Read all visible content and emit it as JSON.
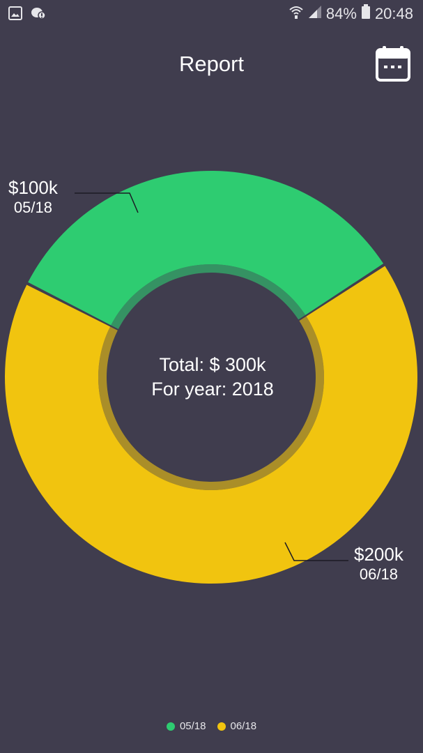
{
  "status_bar": {
    "battery": "84%",
    "time": "20:48",
    "icons": [
      "gallery-icon",
      "chat-bubble-icon",
      "wifi-icon",
      "signal-icon",
      "battery-icon"
    ]
  },
  "header": {
    "title": "Report",
    "calendar_icon": "calendar-icon"
  },
  "center": {
    "total_line": "Total:  $ 300k",
    "year_line": "For year: 2018"
  },
  "colors": {
    "background": "#403d4e",
    "green": "#2ecc71",
    "yellow": "#f1c40f"
  },
  "chart_data": {
    "type": "pie",
    "categories": [
      "05/18",
      "06/18"
    ],
    "values": [
      100,
      200
    ],
    "value_labels": [
      "$100k",
      "$200k"
    ],
    "colors": [
      "#2ecc71",
      "#f1c40f"
    ],
    "legend_position": "bottom"
  },
  "legend": {
    "items": [
      {
        "label": "05/18",
        "color": "#2ecc71"
      },
      {
        "label": "06/18",
        "color": "#f1c40f"
      }
    ]
  }
}
